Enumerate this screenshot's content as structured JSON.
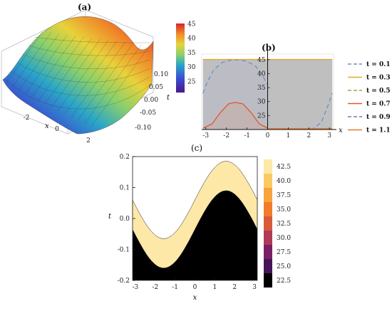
{
  "chart_data": [
    {
      "panel": "(a)",
      "type": "surface3d",
      "x_axis": {
        "label": "x",
        "ticks": [
          "-2",
          "0",
          "2"
        ]
      },
      "t_axis": {
        "label": "t",
        "ticks": [
          "0.10",
          "0.05",
          "0.00",
          "-0.05",
          "-0.10"
        ]
      },
      "xlim": [
        -3.14,
        3.14
      ],
      "tlim": [
        -0.1,
        0.1
      ],
      "zlim": [
        20,
        45
      ],
      "colorbar": {
        "ticks": [
          "45",
          "40",
          "35",
          "30",
          "25"
        ],
        "range": [
          21,
          45
        ],
        "colors": [
          "#6a1fa0",
          "#3b4bd0",
          "#2aa6c8",
          "#8cd06a",
          "#e8d23a",
          "#f08a2a",
          "#d8262a"
        ]
      }
    },
    {
      "panel": "(b)",
      "type": "line",
      "x_axis": {
        "label": "x",
        "ticks": [
          "-3",
          "-2",
          "-1",
          "0",
          "1",
          "2",
          "3"
        ]
      },
      "y_axis": {
        "ticks": [
          "45",
          "40",
          "35",
          "30",
          "25"
        ]
      },
      "xlim": [
        -3.2,
        3.2
      ],
      "ylim": [
        20,
        47
      ],
      "series": [
        {
          "name": "t = 0.1",
          "color": "#6d8fc8",
          "dash": "6,4"
        },
        {
          "name": "t = 0.3",
          "color": "#e6a52d",
          "dash": ""
        },
        {
          "name": "t = 0.5",
          "color": "#9aa64a",
          "dash": "6,4"
        },
        {
          "name": "t = 0.7",
          "color": "#e2562d",
          "dash": ""
        },
        {
          "name": "t = 0.9",
          "color": "#6b7fb2",
          "dash": "6,4"
        },
        {
          "name": "t = 1.1",
          "color": "#e27a2d",
          "dash": ""
        }
      ],
      "visible_curves": [
        {
          "series": "t = 0.1",
          "points": [
            [
              -3.14,
              33
            ],
            [
              -2.9,
              37.5
            ],
            [
              -2.6,
              41.5
            ],
            [
              -2.2,
              44
            ],
            [
              -1.8,
              44.8
            ],
            [
              -1.4,
              44.9
            ],
            [
              -1.0,
              44.4
            ],
            [
              -0.6,
              42.8
            ],
            [
              -0.3,
              40
            ],
            [
              0,
              36
            ]
          ]
        },
        {
          "series": "t = 0.1",
          "points": [
            [
              0,
              20.2
            ],
            [
              0.5,
              20.4
            ],
            [
              1.0,
              20.2
            ],
            [
              1.6,
              20.1
            ],
            [
              2.2,
              20.3
            ],
            [
              2.6,
              22.5
            ],
            [
              2.9,
              28
            ],
            [
              3.14,
              33
            ]
          ]
        },
        {
          "series": "t = 0.3",
          "points": [
            [
              -3.14,
              45.1
            ],
            [
              3.14,
              45.1
            ]
          ]
        },
        {
          "series": "t = 0.7",
          "points": [
            [
              -3.14,
              20.5
            ],
            [
              -2.7,
              22
            ],
            [
              -2.3,
              26
            ],
            [
              -1.9,
              29.2
            ],
            [
              -1.57,
              29.7
            ],
            [
              -1.2,
              29.2
            ],
            [
              -0.8,
              26
            ],
            [
              -0.4,
              22
            ],
            [
              0,
              20.5
            ]
          ]
        },
        {
          "series": "t = 1.1",
          "points": [
            [
              0,
              20.3
            ],
            [
              3.14,
              20.3
            ]
          ]
        }
      ]
    },
    {
      "panel": "(c)",
      "type": "contour",
      "x_axis": {
        "label": "x",
        "ticks": [
          "-3",
          "-2",
          "-1",
          "0",
          "1",
          "2",
          "3"
        ]
      },
      "y_axis": {
        "label": "t",
        "ticks": [
          "0.2",
          "0.1",
          "0.0",
          "-0.1",
          "-0.2"
        ]
      },
      "xlim": [
        -3.14,
        3.14
      ],
      "ylim": [
        -0.2,
        0.2
      ],
      "levels": [
        "42.5",
        "40.0",
        "37.5",
        "35.0",
        "32.5",
        "30.0",
        "27.5",
        "25.0",
        "22.5"
      ],
      "level_colors": [
        "#fde8a8",
        "#fcc862",
        "#f8a33c",
        "#f07c2c",
        "#d85a3a",
        "#b03a58",
        "#7a2166",
        "#451657",
        "#000000"
      ]
    }
  ]
}
